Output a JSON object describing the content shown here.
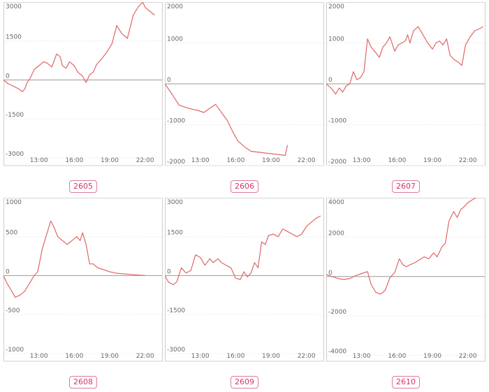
{
  "colors": {
    "line": "#e06666",
    "badge": "#d6336c",
    "frame": "#cfcfcf",
    "zero": "#999999"
  },
  "chart_data": [
    {
      "type": "line",
      "label": "2605",
      "ylim": [
        -3300,
        3000
      ],
      "yticks": [
        3000,
        1500,
        0,
        -1500,
        -3000
      ],
      "xlim": [
        10.0,
        23.5
      ],
      "xticks": [
        {
          "x": 13,
          "label": "13:00"
        },
        {
          "x": 16,
          "label": "16:00"
        },
        {
          "x": 19,
          "label": "19:00"
        },
        {
          "x": 22,
          "label": "22:00"
        }
      ],
      "x": [
        10.0,
        10.4,
        10.9,
        11.3,
        11.6,
        11.8,
        12.0,
        12.3,
        12.6,
        13.0,
        13.4,
        13.7,
        14.1,
        14.5,
        14.8,
        15.0,
        15.3,
        15.6,
        16.0,
        16.3,
        16.7,
        17.0,
        17.3,
        17.6,
        17.9,
        18.3,
        18.8,
        19.2,
        19.6,
        20.0,
        20.5,
        21.0,
        21.4,
        21.8,
        22.0,
        22.4,
        22.8
      ],
      "y": [
        0,
        -150,
        -250,
        -350,
        -450,
        -350,
        -100,
        100,
        400,
        550,
        700,
        650,
        500,
        1000,
        900,
        550,
        450,
        700,
        550,
        300,
        150,
        -100,
        200,
        300,
        600,
        800,
        1100,
        1400,
        2100,
        1800,
        1600,
        2500,
        2800,
        3000,
        2800,
        2650,
        2500
      ]
    },
    {
      "type": "line",
      "label": "2606",
      "ylim": [
        -2000,
        2000
      ],
      "yticks": [
        2000,
        1000,
        0,
        -1000,
        -2000
      ],
      "xlim": [
        10.0,
        23.5
      ],
      "xticks": [
        {
          "x": 13,
          "label": "13:00"
        },
        {
          "x": 16,
          "label": "16:00"
        },
        {
          "x": 19,
          "label": "19:00"
        },
        {
          "x": 22,
          "label": "22:00"
        }
      ],
      "x": [
        10.0,
        10.6,
        11.2,
        12.0,
        12.8,
        13.3,
        13.8,
        14.3,
        14.8,
        15.3,
        15.8,
        16.2,
        16.8,
        17.3,
        20.2,
        20.4
      ],
      "y": [
        0,
        -250,
        -520,
        -600,
        -650,
        -700,
        -600,
        -500,
        -700,
        -900,
        -1200,
        -1400,
        -1550,
        -1650,
        -1750,
        -1500
      ]
    },
    {
      "type": "line",
      "label": "2607",
      "ylim": [
        -2000,
        2000
      ],
      "yticks": [
        2000,
        1000,
        0,
        -1000,
        -2000
      ],
      "xlim": [
        10.0,
        23.5
      ],
      "xticks": [
        {
          "x": 13,
          "label": "13:00"
        },
        {
          "x": 16,
          "label": "16:00"
        },
        {
          "x": 19,
          "label": "19:00"
        },
        {
          "x": 22,
          "label": "22:00"
        }
      ],
      "x": [
        10.0,
        10.4,
        10.8,
        11.1,
        11.4,
        11.7,
        12.0,
        12.3,
        12.6,
        12.9,
        13.2,
        13.5,
        13.8,
        14.1,
        14.5,
        14.8,
        15.1,
        15.4,
        15.8,
        16.1,
        16.4,
        16.7,
        16.9,
        17.1,
        17.4,
        17.8,
        18.2,
        18.6,
        19.0,
        19.3,
        19.6,
        19.9,
        20.2,
        20.5,
        20.8,
        21.1,
        21.5,
        21.8,
        22.2,
        22.6,
        23.0,
        23.3
      ],
      "y": [
        0,
        -100,
        -250,
        -100,
        -200,
        -50,
        0,
        300,
        100,
        150,
        300,
        1100,
        900,
        800,
        650,
        900,
        1000,
        1150,
        800,
        950,
        1000,
        1050,
        1200,
        1000,
        1300,
        1400,
        1200,
        1000,
        850,
        1000,
        1050,
        950,
        1100,
        700,
        600,
        550,
        450,
        950,
        1150,
        1300,
        1350,
        1400
      ]
    },
    {
      "type": "line",
      "label": "2608",
      "ylim": [
        -1100,
        1000
      ],
      "yticks": [
        1000,
        500,
        0,
        -500,
        -1000
      ],
      "xlim": [
        10.0,
        23.5
      ],
      "xticks": [
        {
          "x": 13,
          "label": "13:00"
        },
        {
          "x": 16,
          "label": "16:00"
        },
        {
          "x": 19,
          "label": "19:00"
        },
        {
          "x": 22,
          "label": "22:00"
        }
      ],
      "x": [
        10.0,
        10.3,
        10.7,
        11.0,
        11.4,
        11.8,
        12.2,
        12.6,
        12.9,
        13.3,
        13.7,
        14.0,
        14.2,
        14.6,
        15.0,
        15.4,
        15.8,
        16.2,
        16.5,
        16.7,
        17.0,
        17.3,
        17.6,
        18.0,
        18.4,
        19.0,
        19.6,
        20.4,
        21.2,
        22.0
      ],
      "y": [
        0,
        -100,
        -200,
        -280,
        -250,
        -200,
        -100,
        0,
        50,
        350,
        550,
        700,
        650,
        500,
        450,
        400,
        450,
        500,
        450,
        550,
        400,
        150,
        150,
        100,
        80,
        50,
        30,
        20,
        10,
        0
      ]
    },
    {
      "type": "line",
      "label": "2609",
      "ylim": [
        -3300,
        3000
      ],
      "yticks": [
        3000,
        1500,
        0,
        -1500,
        -3000
      ],
      "xlim": [
        10.0,
        23.5
      ],
      "xticks": [
        {
          "x": 13,
          "label": "13:00"
        },
        {
          "x": 16,
          "label": "16:00"
        },
        {
          "x": 19,
          "label": "19:00"
        },
        {
          "x": 22,
          "label": "22:00"
        }
      ],
      "x": [
        10.0,
        10.3,
        10.7,
        11.0,
        11.4,
        11.8,
        12.2,
        12.6,
        13.0,
        13.4,
        13.8,
        14.1,
        14.5,
        14.8,
        15.2,
        15.6,
        16.0,
        16.4,
        16.7,
        17.0,
        17.3,
        17.6,
        17.9,
        18.2,
        18.5,
        18.8,
        19.2,
        19.6,
        20.0,
        20.4,
        20.8,
        21.2,
        21.6,
        22.0,
        22.4,
        22.8,
        23.2
      ],
      "y": [
        0,
        -250,
        -350,
        -250,
        300,
        100,
        200,
        800,
        700,
        400,
        650,
        500,
        650,
        500,
        400,
        300,
        -100,
        -150,
        150,
        -50,
        100,
        500,
        300,
        1300,
        1200,
        1550,
        1600,
        1500,
        1800,
        1700,
        1600,
        1500,
        1600,
        1900,
        2050,
        2200,
        2300
      ]
    },
    {
      "type": "line",
      "label": "2610",
      "ylim": [
        -4300,
        4000
      ],
      "yticks": [
        4000,
        2000,
        0,
        -2000,
        -4000
      ],
      "xlim": [
        10.0,
        23.5
      ],
      "xticks": [
        {
          "x": 13,
          "label": "13:00"
        },
        {
          "x": 16,
          "label": "16:00"
        },
        {
          "x": 19,
          "label": "19:00"
        },
        {
          "x": 22,
          "label": "22:00"
        }
      ],
      "x": [
        10.0,
        10.5,
        11.0,
        11.5,
        12.0,
        12.5,
        13.0,
        13.5,
        13.8,
        14.2,
        14.6,
        15.0,
        15.4,
        15.8,
        16.2,
        16.5,
        16.8,
        17.1,
        17.5,
        17.9,
        18.3,
        18.7,
        19.1,
        19.4,
        19.8,
        20.1,
        20.4,
        20.8,
        21.1,
        21.4,
        21.7,
        22.0,
        22.4,
        22.8,
        23.2
      ],
      "y": [
        100,
        0,
        -100,
        -150,
        -100,
        50,
        150,
        250,
        -400,
        -800,
        -900,
        -700,
        -50,
        200,
        900,
        600,
        500,
        600,
        700,
        850,
        1000,
        900,
        1200,
        1000,
        1500,
        1700,
        2800,
        3300,
        3000,
        3400,
        3550,
        3750,
        3900,
        4050,
        4150
      ]
    }
  ]
}
